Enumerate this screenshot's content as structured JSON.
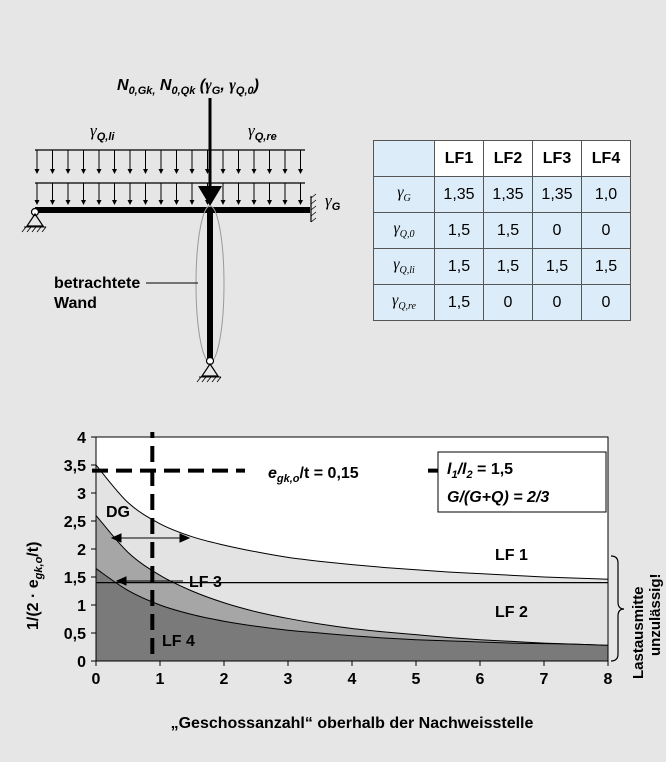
{
  "top": {
    "n_label": "N",
    "n_sub_1": "0,Gk,",
    "n_sub_2": "0,Qk",
    "n_paren_open": " (",
    "n_gamma_g": "γ",
    "n_gamma_g_sub": "G",
    "n_comma": ", ",
    "n_gamma_q0": "γ",
    "n_gamma_q0_sub": "Q,0",
    "n_paren_close": ")",
    "gamma_qli": "γ",
    "gamma_qli_sub": "Q,li",
    "gamma_qre": "γ",
    "gamma_qre_sub": "Q,re",
    "gamma_g": "γ",
    "gamma_g_sub": "G",
    "wall_label_1": "betrachtete",
    "wall_label_2": "Wand"
  },
  "table": {
    "headers": [
      "",
      "LF1",
      "LF2",
      "LF3",
      "LF4"
    ],
    "rows": [
      {
        "gamma": "γ",
        "sub": "G",
        "values": [
          "1,35",
          "1,35",
          "1,35",
          "1,0"
        ]
      },
      {
        "gamma": "γ",
        "sub": "Q,0",
        "values": [
          "1,5",
          "1,5",
          "0",
          "0"
        ]
      },
      {
        "gamma": "γ",
        "sub": "Q,li",
        "values": [
          "1,5",
          "1,5",
          "1,5",
          "1,5"
        ]
      },
      {
        "gamma": "γ",
        "sub": "Q,re",
        "values": [
          "1,5",
          "0",
          "0",
          "0"
        ]
      }
    ]
  },
  "chart_data": {
    "type": "area",
    "xlabel": "„Geschossanzahl“ oberhalb der Nachweisstelle",
    "ylabel_main": "1/(2 · e",
    "ylabel_sub": "gk,o",
    "ylabel_end": "/t)",
    "xlim": [
      0,
      8
    ],
    "ylim": [
      0,
      4
    ],
    "x_ticks": [
      "0",
      "1",
      "2",
      "3",
      "4",
      "5",
      "6",
      "7",
      "8"
    ],
    "y_ticks": [
      "0",
      "0,5",
      "1",
      "1,5",
      "2",
      "2,5",
      "3",
      "3,5",
      "4"
    ],
    "x": [
      0,
      0.5,
      1,
      1.5,
      2,
      2.5,
      3,
      3.5,
      4,
      4.5,
      5,
      5.5,
      6,
      6.5,
      7,
      7.5,
      8
    ],
    "series": [
      {
        "name": "LF 1",
        "values": [
          3.5,
          2.83,
          2.45,
          2.22,
          2.07,
          1.95,
          1.85,
          1.78,
          1.72,
          1.67,
          1.63,
          1.59,
          1.56,
          1.53,
          1.5,
          1.48,
          1.46
        ]
      },
      {
        "name": "LF 3",
        "values": [
          2.6,
          1.94,
          1.53,
          1.25,
          1.04,
          0.88,
          0.76,
          0.66,
          0.58,
          0.52,
          0.47,
          0.42,
          0.38,
          0.35,
          0.32,
          0.3,
          0.28
        ]
      },
      {
        "name": "LF 4",
        "values": [
          1.65,
          1.26,
          1.0,
          0.83,
          0.71,
          0.62,
          0.55,
          0.5,
          0.45,
          0.41,
          0.38,
          0.36,
          0.34,
          0.32,
          0.31,
          0.3,
          0.28
        ]
      }
    ],
    "limit_line_y": 1.4,
    "dg_x": 0.88,
    "dashed_h_y": 3.4,
    "annotations": {
      "ecc": "e",
      "ecc_sub": "gk,o",
      "ecc_rest": "/t = 0,15",
      "ratio_l1": "l",
      "ratio_l1_sub": "1",
      "ratio_slash": "/l",
      "ratio_l2_sub": "2",
      "ratio_rest": " = 1,5",
      "ratio_g": "G/(G+Q) = 2/3",
      "dg": "DG",
      "lf1": "LF 1",
      "lf2": "LF 2",
      "lf3": "LF 3",
      "lf4": "LF 4",
      "side_1": "Lastausmitte",
      "side_2": "unzulässig!"
    },
    "colors": {
      "lf1_fill": "#ffffff",
      "lf2_fill": "#e3e3e3",
      "lf3_fill": "#a6a6a6",
      "lf4_fill": "#7a7a7a"
    }
  }
}
